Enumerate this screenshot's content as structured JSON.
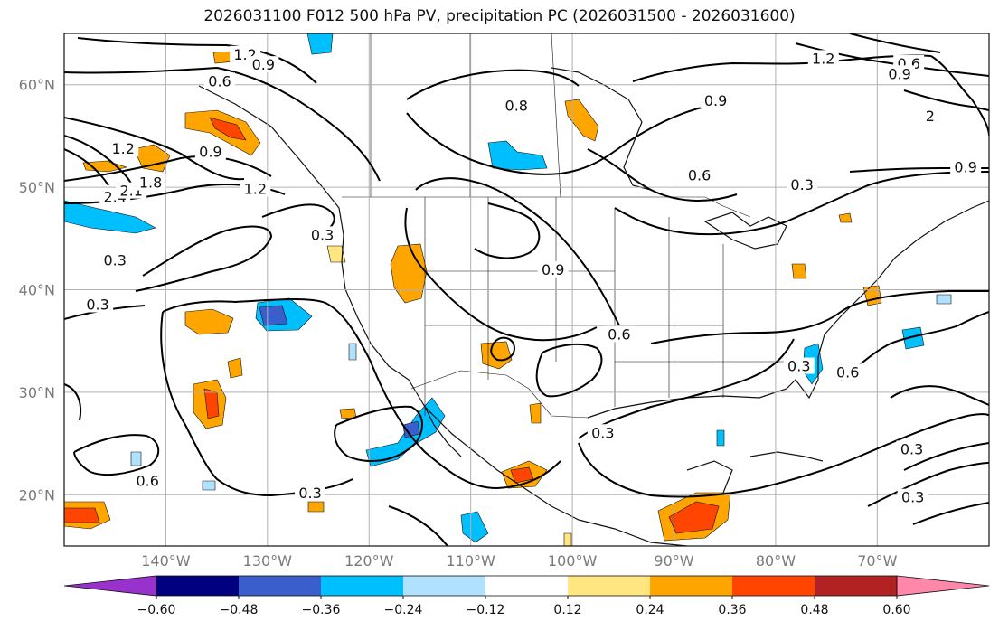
{
  "title": "2026031100 F012 500 hPa PV, precipitation PC (2026031500 - 2026031600)",
  "map": {
    "projection": "equirectangular",
    "lon_range": [
      -150,
      -59
    ],
    "lat_range": [
      15,
      65
    ],
    "parallels": [
      20,
      30,
      40,
      50,
      60
    ],
    "meridians": [
      -140,
      -130,
      -120,
      -110,
      -100,
      -90,
      -80,
      -70
    ],
    "lat_labels": [
      "20°N",
      "30°N",
      "40°N",
      "50°N",
      "60°N"
    ],
    "lon_labels": [
      "140°W",
      "130°W",
      "120°W",
      "110°W",
      "100°W",
      "90°W",
      "80°W",
      "70°W"
    ],
    "grid_color": "#b0b0b0"
  },
  "colorbar": {
    "levels": [
      -0.6,
      -0.48,
      -0.36,
      -0.24,
      -0.12,
      0.12,
      0.24,
      0.36,
      0.48,
      0.6
    ],
    "tick_labels": [
      "−0.60",
      "−0.48",
      "−0.36",
      "−0.24",
      "−0.12",
      "0.12",
      "0.24",
      "0.36",
      "0.48",
      "0.60"
    ],
    "colors": [
      "#9932cc",
      "#000080",
      "#3a5fcd",
      "#00bfff",
      "#b0e2ff",
      "#ffffff",
      "#ffe680",
      "#ffa500",
      "#ff4500",
      "#b22222",
      "#ff88aa"
    ],
    "extend": "both"
  },
  "pv_contour_labels": [
    {
      "text": "1.2",
      "lon": -132.2,
      "lat": 62.9
    },
    {
      "text": "0.9",
      "lon": -130.4,
      "lat": 61.9
    },
    {
      "text": "0.6",
      "lon": -134.7,
      "lat": 60.3
    },
    {
      "text": "1.2",
      "lon": -144.2,
      "lat": 53.7
    },
    {
      "text": "0.9",
      "lon": -135.6,
      "lat": 53.4
    },
    {
      "text": "1.2",
      "lon": -131.2,
      "lat": 49.8
    },
    {
      "text": "0.3",
      "lon": -124.6,
      "lat": 45.3
    },
    {
      "text": "0.3",
      "lon": -145.0,
      "lat": 42.8
    },
    {
      "text": "0.3",
      "lon": -146.7,
      "lat": 38.5
    },
    {
      "text": "0.6",
      "lon": -141.8,
      "lat": 21.3
    },
    {
      "text": "0.3",
      "lon": -125.8,
      "lat": 20.1
    },
    {
      "text": "0.8",
      "lon": -105.5,
      "lat": 57.9
    },
    {
      "text": "0.9",
      "lon": -85.9,
      "lat": 58.4
    },
    {
      "text": "0.6",
      "lon": -87.5,
      "lat": 51.1
    },
    {
      "text": "0.3",
      "lon": -77.4,
      "lat": 50.2
    },
    {
      "text": "0.9",
      "lon": -101.9,
      "lat": 41.9
    },
    {
      "text": "0.6",
      "lon": -95.4,
      "lat": 35.6
    },
    {
      "text": "0.3",
      "lon": -97.0,
      "lat": 26.0
    },
    {
      "text": "0.3",
      "lon": -77.7,
      "lat": 32.5
    },
    {
      "text": "0.6",
      "lon": -72.9,
      "lat": 31.9
    },
    {
      "text": "0.3",
      "lon": -66.6,
      "lat": 24.4
    },
    {
      "text": "0.3",
      "lon": -66.5,
      "lat": 19.7
    },
    {
      "text": "1.2",
      "lon": -75.3,
      "lat": 62.5
    },
    {
      "text": "0.6",
      "lon": -66.9,
      "lat": 62.0
    },
    {
      "text": "0.9",
      "lon": -67.8,
      "lat": 61.0
    },
    {
      "text": "2",
      "lon": -64.8,
      "lat": 56.9
    },
    {
      "text": "0.9",
      "lon": -61.3,
      "lat": 51.9
    },
    {
      "text": "2.4",
      "lon": -145.0,
      "lat": 49.0
    },
    {
      "text": "2.1",
      "lon": -143.4,
      "lat": 49.6
    },
    {
      "text": "1.8",
      "lon": -141.5,
      "lat": 50.4
    }
  ]
}
